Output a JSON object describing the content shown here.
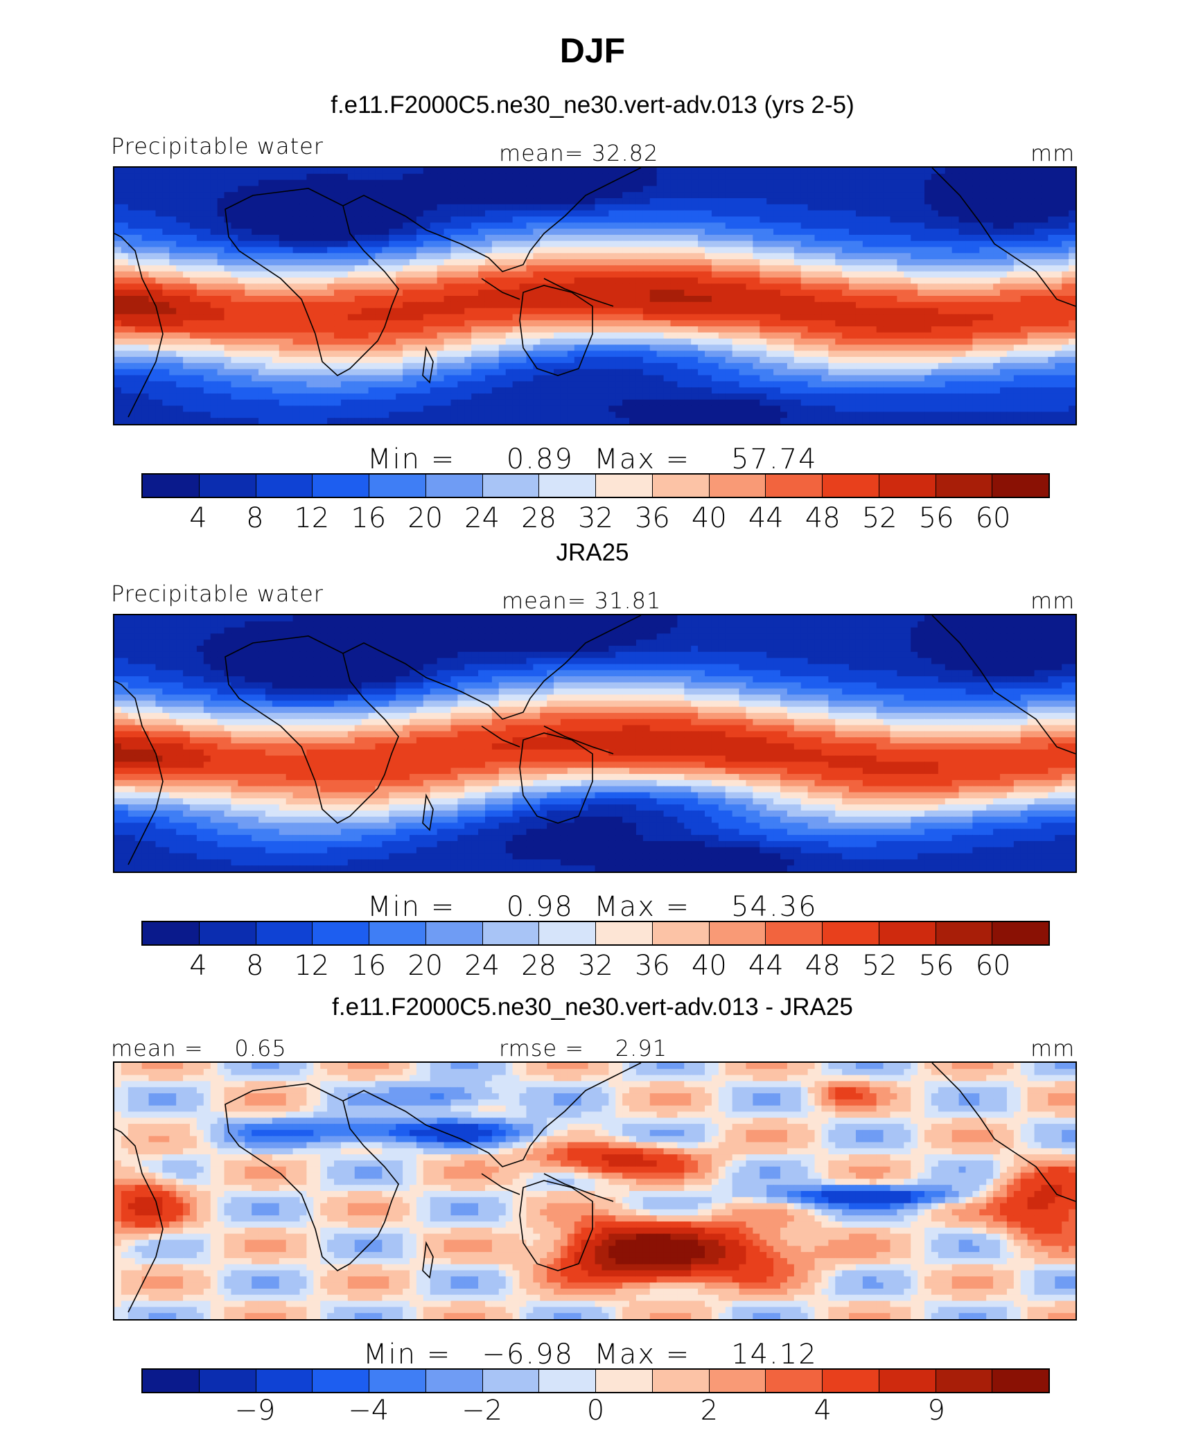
{
  "title": "DJF",
  "panels": [
    {
      "subtitle": "f.e11.F2000C5.ne30_ne30.vert-adv.013 (yrs 2-5)",
      "left_label": "Precipitable water",
      "center_label": "mean=   32.82",
      "right_label": "mm",
      "minmax": "Min =     0.89  Max =    57.74",
      "ticks": [
        "4",
        "8",
        "12",
        "16",
        "20",
        "24",
        "28",
        "32",
        "36",
        "40",
        "44",
        "48",
        "52",
        "56",
        "60"
      ],
      "field": "model"
    },
    {
      "subtitle": "JRA25",
      "left_label": "Precipitable water",
      "center_label": "mean=   31.81",
      "right_label": "mm",
      "minmax": "Min =     0.98  Max =    54.36",
      "ticks": [
        "4",
        "8",
        "12",
        "16",
        "20",
        "24",
        "28",
        "32",
        "36",
        "40",
        "44",
        "48",
        "52",
        "56",
        "60"
      ],
      "field": "obs"
    },
    {
      "subtitle": "f.e11.F2000C5.ne30_ne30.vert-adv.013 - JRA25",
      "left_label": "mean =    0.65",
      "center_label": "rmse =    2.91",
      "right_label": "mm",
      "minmax": "Min =   −6.98  Max =    14.12",
      "ticks": [
        "−9",
        "−4",
        "−2",
        "0",
        "2",
        "4",
        "9"
      ],
      "field": "diff"
    }
  ],
  "colormap": [
    "#0a1a8c",
    "#0b2db0",
    "#0f42d4",
    "#1d5ef0",
    "#3f7ef5",
    "#6f9cf4",
    "#a8c4f6",
    "#d6e4fa",
    "#fde5d5",
    "#fcc3a6",
    "#f99a76",
    "#f2643e",
    "#e8401c",
    "#cf2a0e",
    "#a81e08",
    "#8a1104"
  ]
}
